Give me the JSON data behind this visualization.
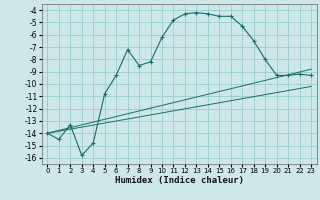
{
  "xlabel": "Humidex (Indice chaleur)",
  "ylabel": "",
  "bg_color": "#cce8e8",
  "grid_color": "#99cccc",
  "line_color": "#1a6b6b",
  "xlim": [
    -0.5,
    23.5
  ],
  "ylim": [
    -16.5,
    -3.5
  ],
  "xticks": [
    0,
    1,
    2,
    3,
    4,
    5,
    6,
    7,
    8,
    9,
    10,
    11,
    12,
    13,
    14,
    15,
    16,
    17,
    18,
    19,
    20,
    21,
    22,
    23
  ],
  "yticks": [
    -4,
    -5,
    -6,
    -7,
    -8,
    -9,
    -10,
    -11,
    -12,
    -13,
    -14,
    -15,
    -16
  ],
  "main_x": [
    0,
    1,
    2,
    3,
    4,
    5,
    6,
    7,
    8,
    9,
    10,
    11,
    12,
    13,
    14,
    15,
    16,
    17,
    18,
    19,
    20,
    21,
    22,
    23
  ],
  "main_y": [
    -14,
    -14.5,
    -13.3,
    -15.8,
    -14.8,
    -10.8,
    -9.3,
    -7.2,
    -8.5,
    -8.2,
    -6.2,
    -4.8,
    -4.3,
    -4.2,
    -4.3,
    -4.5,
    -4.5,
    -5.3,
    -6.5,
    -8.0,
    -9.3,
    -9.3,
    -9.2,
    -9.3
  ],
  "line1_x": [
    0,
    23
  ],
  "line1_y": [
    -14,
    -8.8
  ],
  "line2_x": [
    0,
    23
  ],
  "line2_y": [
    -14,
    -10.2
  ]
}
